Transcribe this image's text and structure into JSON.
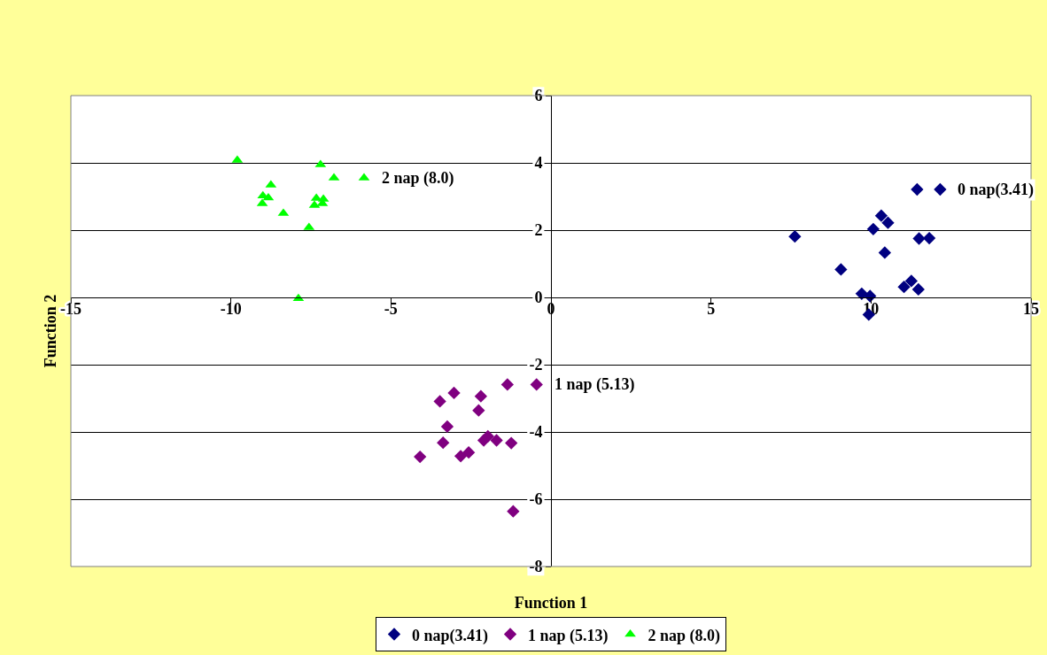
{
  "chart_data": {
    "type": "scatter",
    "xlabel": "Function 1",
    "ylabel": "Function 2",
    "xlim": [
      -15,
      15
    ],
    "xticks": [
      -15,
      -10,
      -5,
      0,
      5,
      10,
      15
    ],
    "ylim": [
      -8,
      6
    ],
    "yticks": [
      -8,
      -6,
      -4,
      -2,
      0,
      2,
      4,
      6
    ],
    "grid": "y",
    "legend": "bottom",
    "series": [
      {
        "name": "0 nap(3.41)",
        "color": "#000080",
        "marker": "diamond",
        "x": [
          11.44,
          12.16,
          10.32,
          10.53,
          10.07,
          7.62,
          11.5,
          11.82,
          10.43,
          9.06,
          11.26,
          11.03,
          11.48,
          9.71,
          9.97,
          9.93
        ],
        "values": [
          3.21,
          3.21,
          2.43,
          2.22,
          2.03,
          1.81,
          1.75,
          1.76,
          1.33,
          0.83,
          0.49,
          0.31,
          0.24,
          0.11,
          0.04,
          -0.51
        ]
      },
      {
        "name": "1 nap (5.13)",
        "color": "#800080",
        "marker": "diamond",
        "x": [
          -0.45,
          -1.36,
          -3.03,
          -3.47,
          -2.19,
          -2.26,
          -3.24,
          -3.37,
          -4.09,
          -2.82,
          -2.57,
          -2.1,
          -1.97,
          -1.7,
          -1.24,
          -1.18
        ],
        "values": [
          -2.59,
          -2.59,
          -2.84,
          -3.09,
          -2.94,
          -3.36,
          -3.84,
          -4.32,
          -4.74,
          -4.72,
          -4.61,
          -4.25,
          -4.13,
          -4.25,
          -4.33,
          -6.36
        ]
      },
      {
        "name": "2 nap (8.0)",
        "color": "#00ff00",
        "marker": "triangle",
        "x": [
          -9.8,
          -7.2,
          -6.78,
          -5.84,
          -8.75,
          -9.0,
          -8.83,
          -9.02,
          -7.33,
          -7.11,
          -7.39,
          -7.14,
          -8.36,
          -7.56,
          -7.89
        ],
        "values": [
          4.08,
          3.95,
          3.55,
          3.55,
          3.34,
          3.02,
          2.96,
          2.79,
          2.95,
          2.92,
          2.74,
          2.79,
          2.5,
          2.08,
          -0.03
        ]
      }
    ],
    "annotations": [
      {
        "text": "0 nap(3.41)",
        "x": 12.16,
        "y": 3.21
      },
      {
        "text": "1 nap (5.13)",
        "x": -0.45,
        "y": -2.59
      },
      {
        "text": "2 nap (8.0)",
        "x": -5.84,
        "y": 3.55
      }
    ]
  }
}
